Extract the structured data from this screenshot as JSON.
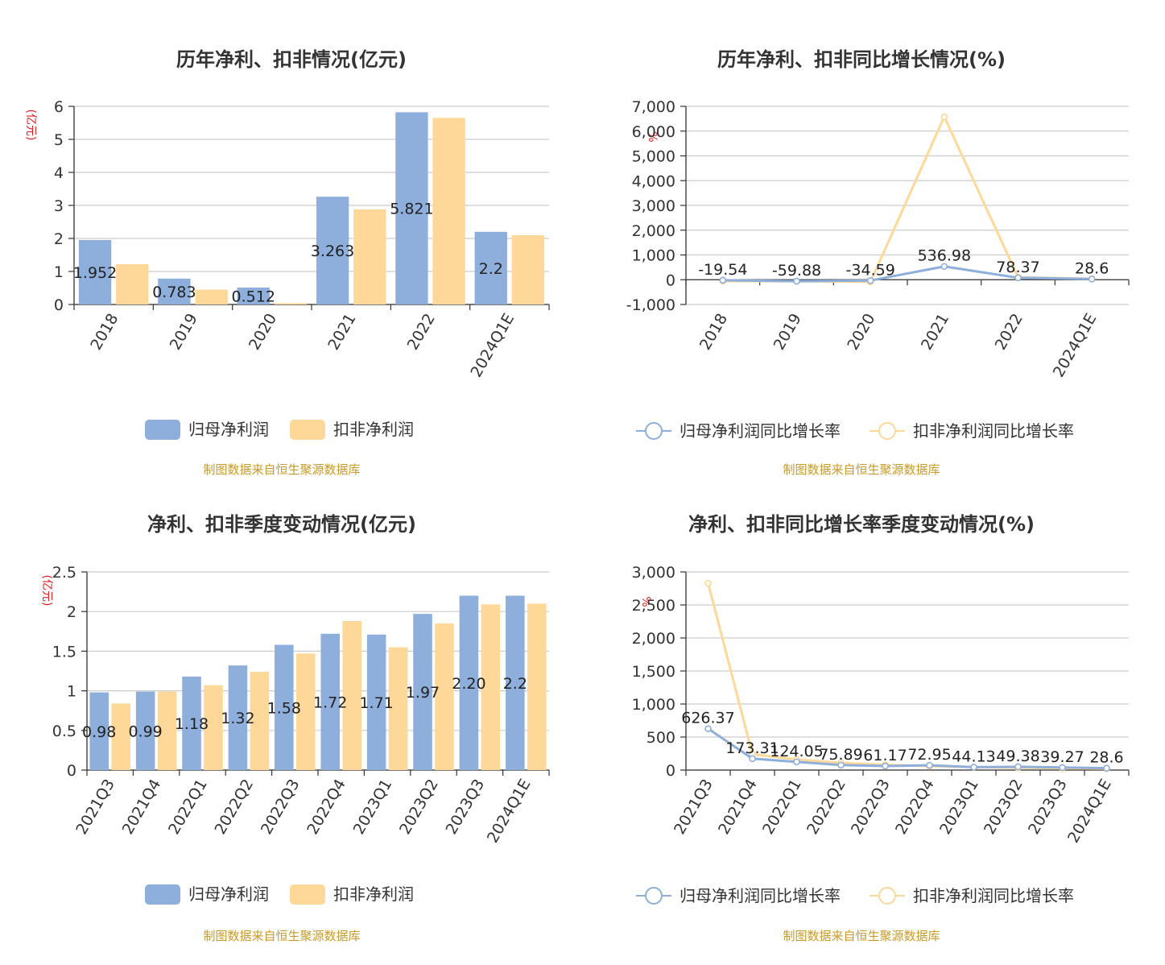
{
  "colors": {
    "blue": "#8eaedb",
    "orange": "#fdd898",
    "source": "#c89a28",
    "unit": "#e31e1e"
  },
  "source_text": "制图数据来自恒生聚源数据库",
  "chart_data": [
    {
      "type": "bar",
      "title": "历年净利、扣非情况(亿元)",
      "ylabel": "(亿元)",
      "ylim": [
        0,
        6
      ],
      "yticks": [
        0,
        1,
        2,
        3,
        4,
        5,
        6
      ],
      "ytick_labels": [
        "0",
        "1",
        "2",
        "3",
        "4",
        "5",
        "6"
      ],
      "categories": [
        "2018",
        "2019",
        "2020",
        "2021",
        "2022",
        "2024Q1E"
      ],
      "series": [
        {
          "name": "归母净利润",
          "values": [
            1.952,
            0.783,
            0.512,
            3.263,
            5.821,
            2.2
          ],
          "labels": [
            "1.952",
            "0.783",
            "0.512",
            "3.263",
            "5.821",
            "2.2"
          ]
        },
        {
          "name": "扣非净利润",
          "values": [
            1.22,
            0.45,
            0.04,
            2.88,
            5.65,
            2.1
          ]
        }
      ],
      "legend": "bottom-center"
    },
    {
      "type": "line",
      "title": "历年净利、扣非同比增长情况(%)",
      "ylabel": "%",
      "ylim": [
        -1000,
        7000
      ],
      "yticks": [
        -1000,
        0,
        1000,
        2000,
        3000,
        4000,
        5000,
        6000,
        7000
      ],
      "ytick_labels": [
        "-1,000",
        "0",
        "1,000",
        "2,000",
        "3,000",
        "4,000",
        "5,000",
        "6,000",
        "7,000"
      ],
      "categories": [
        "2018",
        "2019",
        "2020",
        "2021",
        "2022",
        "2024Q1E"
      ],
      "series": [
        {
          "name": "归母净利润同比增长率",
          "values": [
            -19.54,
            -59.88,
            -34.59,
            536.98,
            78.37,
            28.6
          ],
          "labels": [
            "-19.54",
            "-59.88",
            "-34.59",
            "536.98",
            "78.37",
            "28.6"
          ]
        },
        {
          "name": "扣非净利润同比增长率",
          "values": [
            -60,
            -63,
            -90,
            6580,
            96,
            40
          ]
        }
      ],
      "legend": "bottom-center"
    },
    {
      "type": "bar",
      "title": "净利、扣非季度变动情况(亿元)",
      "ylabel": "(亿元)",
      "ylim": [
        0,
        2.5
      ],
      "yticks": [
        0,
        0.5,
        1,
        1.5,
        2,
        2.5
      ],
      "ytick_labels": [
        "0",
        "0.5",
        "1",
        "1.5",
        "2",
        "2.5"
      ],
      "categories": [
        "2021Q3",
        "2021Q4",
        "2022Q1",
        "2022Q2",
        "2022Q3",
        "2022Q4",
        "2023Q1",
        "2023Q2",
        "2023Q3",
        "2024Q1E"
      ],
      "series": [
        {
          "name": "归母净利润",
          "values": [
            0.98,
            0.99,
            1.18,
            1.32,
            1.58,
            1.72,
            1.71,
            1.97,
            2.2,
            2.2
          ],
          "labels": [
            "0.98",
            "0.99",
            "1.18",
            "1.32",
            "1.58",
            "1.72",
            "1.71",
            "1.97",
            "2.20",
            "2.2"
          ]
        },
        {
          "name": "扣非净利润",
          "values": [
            0.84,
            0.99,
            1.07,
            1.24,
            1.47,
            1.88,
            1.55,
            1.85,
            2.09,
            2.1
          ]
        }
      ],
      "legend": "bottom-center"
    },
    {
      "type": "line",
      "title": "净利、扣非同比增长率季度变动情况(%)",
      "ylabel": "%",
      "ylim": [
        0,
        3000
      ],
      "yticks": [
        0,
        500,
        1000,
        1500,
        2000,
        2500,
        3000
      ],
      "ytick_labels": [
        "0",
        "500",
        "1,000",
        "1,500",
        "2,000",
        "2,500",
        "3,000"
      ],
      "categories": [
        "2021Q3",
        "2021Q4",
        "2022Q1",
        "2022Q2",
        "2022Q3",
        "2022Q4",
        "2023Q1",
        "2023Q2",
        "2023Q3",
        "2024Q1E"
      ],
      "series": [
        {
          "name": "归母净利润同比增长率",
          "values": [
            626.37,
            173.31,
            124.05,
            75.89,
            61.17,
            72.95,
            44.13,
            49.38,
            39.27,
            28.6
          ],
          "labels": [
            "626.37",
            "173.31",
            "124.05",
            "75.89",
            "61.17",
            "72.95",
            "44.13",
            "49.38",
            "39.27",
            "28.6"
          ]
        },
        {
          "name": "扣非净利润同比增长率",
          "values": [
            2830,
            240,
            160,
            110,
            80,
            60,
            45,
            35,
            28,
            22
          ]
        }
      ],
      "legend": "bottom-center"
    }
  ]
}
